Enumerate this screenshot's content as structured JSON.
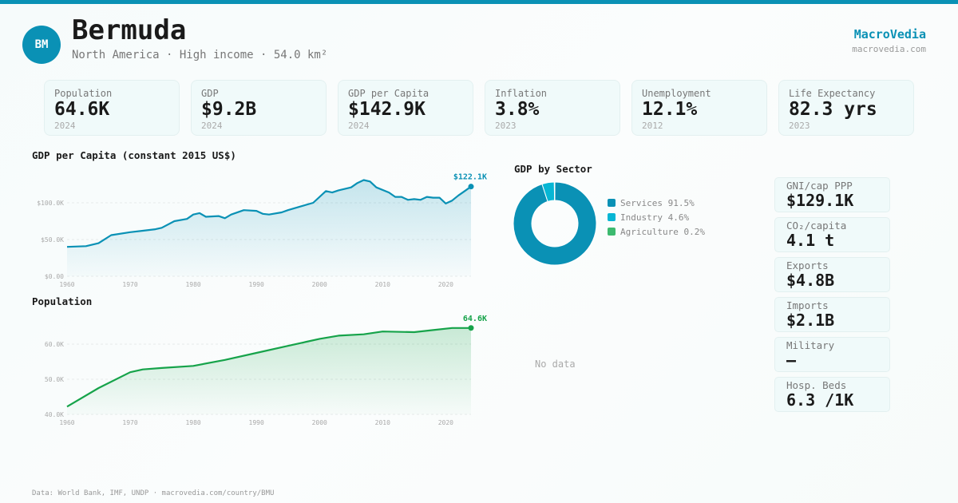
{
  "header": {
    "initials": "BM",
    "title": "Bermuda",
    "subtitle": "North America · High income · 54.0 km²",
    "brand": "MacroVedia",
    "brand_url": "macrovedia.com"
  },
  "colors": {
    "accent": "#0a91b5",
    "population": "#16a34a",
    "industry": "#06b6d4",
    "agriculture": "#3cba6f"
  },
  "cards": [
    {
      "label": "Population",
      "value": "64.6K",
      "year": "2024"
    },
    {
      "label": "GDP",
      "value": "$9.2B",
      "year": "2024"
    },
    {
      "label": "GDP per Capita",
      "value": "$142.9K",
      "year": "2024"
    },
    {
      "label": "Inflation",
      "value": "3.8%",
      "year": "2023"
    },
    {
      "label": "Unemployment",
      "value": "12.1%",
      "year": "2012"
    },
    {
      "label": "Life Expectancy",
      "value": "82.3 yrs",
      "year": "2023"
    }
  ],
  "side_cards": [
    {
      "label": "GNI/cap PPP",
      "value": "$129.1K"
    },
    {
      "label": "CO₂/capita",
      "value": "4.1 t"
    },
    {
      "label": "Exports",
      "value": "$4.8B"
    },
    {
      "label": "Imports",
      "value": "$2.1B"
    },
    {
      "label": "Military",
      "value": "—"
    },
    {
      "label": "Hosp. Beds",
      "value": "6.3 /1K"
    }
  ],
  "no_data": "No data",
  "footer": "Data: World Bank, IMF, UNDP · macrovedia.com/country/BMU",
  "chart_data": [
    {
      "type": "area",
      "title": "GDP per Capita (constant 2015 US$)",
      "ylim": [
        0,
        130000
      ],
      "yticks": [
        {
          "v": 0,
          "label": "$0.00"
        },
        {
          "v": 50000,
          "label": "$50.0K"
        },
        {
          "v": 100000,
          "label": "$100.0K"
        }
      ],
      "xticks": [
        1960,
        1970,
        1980,
        1990,
        2000,
        2010,
        2020
      ],
      "end_label": "$122.1K",
      "grid": true,
      "x": [
        1960,
        1963,
        1965,
        1967,
        1970,
        1972,
        1974,
        1975,
        1977,
        1979,
        1980,
        1981,
        1982,
        1984,
        1985,
        1986,
        1988,
        1990,
        1991,
        1992,
        1994,
        1995,
        1997,
        1999,
        2001,
        2002,
        2003,
        2005,
        2006,
        2007,
        2008,
        2009,
        2011,
        2012,
        2013,
        2014,
        2015,
        2016,
        2017,
        2018,
        2019,
        2020,
        2021,
        2022,
        2023,
        2024
      ],
      "y": [
        40000,
        41000,
        45000,
        56000,
        60000,
        62000,
        64000,
        66000,
        75000,
        78000,
        84000,
        86000,
        81000,
        82000,
        79000,
        84000,
        90000,
        89000,
        85000,
        84000,
        87000,
        90000,
        95000,
        100000,
        116000,
        114000,
        117000,
        121000,
        127000,
        131000,
        129000,
        121000,
        114000,
        108000,
        108000,
        104000,
        105000,
        104000,
        108000,
        107000,
        107000,
        99000,
        103000,
        110000,
        116000,
        122100
      ]
    },
    {
      "type": "area",
      "title": "Population",
      "ylim": [
        40000,
        65000
      ],
      "yticks": [
        {
          "v": 40000,
          "label": "40.0K"
        },
        {
          "v": 50000,
          "label": "50.0K"
        },
        {
          "v": 60000,
          "label": "60.0K"
        }
      ],
      "xticks": [
        1960,
        1970,
        1980,
        1990,
        2000,
        2010,
        2020
      ],
      "end_label": "64.6K",
      "grid": true,
      "x": [
        1960,
        1965,
        1970,
        1972,
        1975,
        1980,
        1985,
        1990,
        1995,
        2000,
        2003,
        2007,
        2010,
        2015,
        2018,
        2021,
        2024
      ],
      "y": [
        42200,
        47500,
        52000,
        52800,
        53200,
        53800,
        55500,
        57500,
        59500,
        61500,
        62400,
        62800,
        63600,
        63400,
        64000,
        64600,
        64600
      ]
    },
    {
      "type": "pie",
      "title": "GDP by Sector",
      "categories": [
        "Services",
        "Industry",
        "Agriculture"
      ],
      "values": [
        91.5,
        4.6,
        0.2
      ],
      "labels": [
        "Services 91.5%",
        "Industry 4.6%",
        "Agriculture 0.2%"
      ]
    }
  ]
}
